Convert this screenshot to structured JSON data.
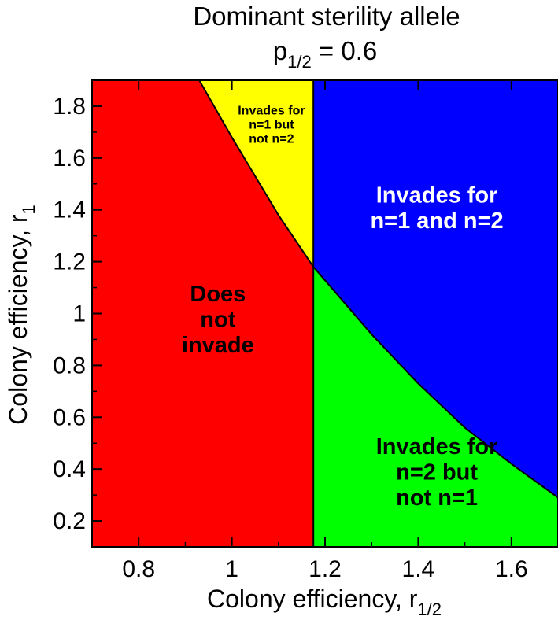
{
  "chart_data": {
    "type": "area",
    "title": "Dominant sterility allele",
    "subtitle": {
      "base": "p",
      "subscript": "1/2",
      "suffix": " = 0.6"
    },
    "xlabel": {
      "base": "Colony efficiency, r",
      "subscript": "1/2"
    },
    "ylabel": {
      "base": "Colony efficiency, r",
      "subscript": "1"
    },
    "xlim": [
      0.7,
      1.7
    ],
    "ylim": [
      0.1,
      1.9
    ],
    "xticks": [
      0.8,
      1.0,
      1.2,
      1.4,
      1.6
    ],
    "xtick_labels": [
      "0.8",
      "1",
      "1.2",
      "1.4",
      "1.6"
    ],
    "yticks": [
      0.2,
      0.4,
      0.6,
      0.8,
      1.0,
      1.2,
      1.4,
      1.6,
      1.8
    ],
    "ytick_labels": [
      "0.2",
      "0.4",
      "0.6",
      "0.8",
      "1",
      "1.2",
      "1.4",
      "1.6",
      "1.8"
    ],
    "grid": false,
    "boundaries": {
      "vertical_line_x": 1.175,
      "curve": [
        {
          "x": 0.93,
          "y": 1.9
        },
        {
          "x": 1.0,
          "y": 1.68
        },
        {
          "x": 1.1,
          "y": 1.38
        },
        {
          "x": 1.175,
          "y": 1.18
        },
        {
          "x": 1.3,
          "y": 0.92
        },
        {
          "x": 1.4,
          "y": 0.73
        },
        {
          "x": 1.5,
          "y": 0.56
        },
        {
          "x": 1.6,
          "y": 0.42
        },
        {
          "x": 1.7,
          "y": 0.29
        }
      ]
    },
    "regions": [
      {
        "id": "does-not-invade",
        "label_lines": [
          "Does",
          "not",
          "invade"
        ],
        "color": "#ff0000",
        "text_color": "#000000",
        "label_x": 0.97,
        "label_y": 0.98,
        "font_size": 29
      },
      {
        "id": "n1-not-n2",
        "label_lines": [
          "Invades for",
          "n=1 but",
          "not n=2"
        ],
        "color": "#ffff00",
        "text_color": "#000000",
        "label_x": 1.085,
        "label_y": 1.73,
        "font_size": 16
      },
      {
        "id": "n1-and-n2",
        "label_lines": [
          "Invades for",
          "n=1 and n=2"
        ],
        "color": "#0000ff",
        "text_color": "#ffffff",
        "label_x": 1.44,
        "label_y": 1.41,
        "font_size": 29
      },
      {
        "id": "n2-not-n1",
        "label_lines": [
          "Invades for",
          "n=2 but",
          "not n=1"
        ],
        "color": "#00ff00",
        "text_color": "#000000",
        "label_x": 1.44,
        "label_y": 0.39,
        "font_size": 29
      }
    ]
  }
}
